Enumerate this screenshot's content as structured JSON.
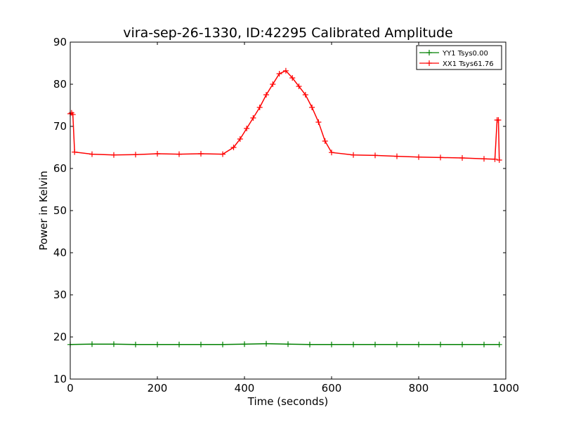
{
  "chart_data": {
    "type": "line",
    "title": "vira-sep-26-1330, ID:42295 Calibrated Amplitude",
    "xlabel": "Time (seconds)",
    "ylabel": "Power in Kelvin",
    "xlim": [
      0,
      1000
    ],
    "ylim": [
      10,
      90
    ],
    "xticks": [
      0,
      200,
      400,
      600,
      800,
      1000
    ],
    "yticks": [
      10,
      20,
      30,
      40,
      50,
      60,
      70,
      80,
      90
    ],
    "xtick_labels": [
      "0",
      "200",
      "400",
      "600",
      "800",
      "1000"
    ],
    "ytick_labels": [
      "10",
      "20",
      "30",
      "40",
      "50",
      "60",
      "70",
      "80",
      "90"
    ],
    "grid": false,
    "legend_position": "top-right",
    "marker": "+",
    "series": [
      {
        "name": "YY1 Tsys0.00",
        "color": "#008000",
        "x": [
          0,
          50,
          100,
          150,
          200,
          250,
          300,
          350,
          400,
          450,
          500,
          550,
          600,
          650,
          700,
          750,
          800,
          850,
          900,
          950,
          985
        ],
        "y": [
          18.2,
          18.3,
          18.3,
          18.2,
          18.2,
          18.2,
          18.2,
          18.2,
          18.3,
          18.4,
          18.3,
          18.2,
          18.2,
          18.2,
          18.2,
          18.2,
          18.2,
          18.2,
          18.2,
          18.2,
          18.2
        ]
      },
      {
        "name": "XX1 Tsys61.76",
        "color": "#ff0000",
        "x": [
          0,
          3,
          6,
          10,
          50,
          100,
          150,
          200,
          250,
          300,
          350,
          375,
          390,
          405,
          420,
          435,
          450,
          465,
          480,
          495,
          510,
          525,
          540,
          555,
          570,
          585,
          600,
          650,
          700,
          750,
          800,
          850,
          900,
          950,
          975,
          980,
          983,
          985
        ],
        "y": [
          73.0,
          73.2,
          72.8,
          63.9,
          63.4,
          63.2,
          63.3,
          63.5,
          63.4,
          63.5,
          63.4,
          65.0,
          67.0,
          69.5,
          72.0,
          74.5,
          77.5,
          80.0,
          82.5,
          83.2,
          81.5,
          79.5,
          77.5,
          74.5,
          71.0,
          66.5,
          63.8,
          63.2,
          63.1,
          62.9,
          62.7,
          62.6,
          62.5,
          62.3,
          62.2,
          71.5,
          71.5,
          62.0
        ]
      }
    ]
  }
}
